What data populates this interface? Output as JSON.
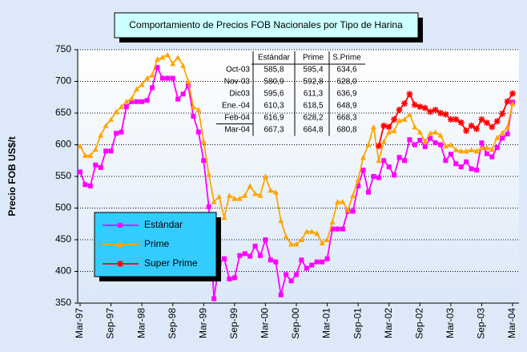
{
  "chart_data": {
    "type": "line",
    "title": "Comportamiento de Precios FOB Nacionales por Tipo de Harina",
    "y_label": "Precio FOB US$/t",
    "categories": [
      "Mar-97",
      null,
      null,
      null,
      null,
      null,
      "Sep-97",
      null,
      null,
      null,
      null,
      null,
      "Mar-98",
      null,
      null,
      null,
      null,
      null,
      "Sep-98",
      null,
      null,
      null,
      null,
      null,
      "Mar-99",
      null,
      null,
      null,
      null,
      null,
      "Sep-99",
      null,
      null,
      null,
      null,
      null,
      "Mar-00",
      null,
      null,
      null,
      null,
      null,
      "Sep-00",
      null,
      null,
      null,
      null,
      null,
      "Mar-01",
      null,
      null,
      null,
      null,
      null,
      "Sep-01",
      null,
      null,
      null,
      null,
      null,
      "Mar-02",
      null,
      null,
      null,
      null,
      null,
      "Sep-02",
      null,
      null,
      null,
      null,
      null,
      "Mar-03",
      null,
      null,
      null,
      null,
      null,
      "Sep-03",
      null,
      null,
      null,
      null,
      null,
      "Mar-04"
    ],
    "series": [
      {
        "name": "Estándar",
        "color": "#ff00ff",
        "marker": "square",
        "values": [
          557,
          537,
          535,
          568,
          564,
          590,
          590,
          618,
          620,
          660,
          668,
          668,
          668,
          670,
          690,
          722,
          705,
          705,
          705,
          672,
          680,
          693,
          645,
          620,
          575,
          502,
          357,
          413,
          420,
          388,
          390,
          425,
          428,
          424,
          440,
          425,
          450,
          418,
          415,
          363,
          395,
          385,
          395,
          418,
          405,
          410,
          415,
          415,
          420,
          467,
          467,
          467,
          495,
          495,
          535,
          560,
          525,
          550,
          548,
          575,
          565,
          552,
          580,
          575,
          608,
          600,
          607,
          597,
          610,
          603,
          600,
          575,
          585,
          570,
          565,
          573,
          562,
          560,
          603,
          585.8,
          580.9,
          595.6,
          610.3,
          616.9,
          667.3
        ]
      },
      {
        "name": "Prime",
        "color": "#ffa500",
        "marker": "triangle",
        "values": [
          598,
          583,
          583,
          593,
          615,
          630,
          640,
          652,
          660,
          668,
          673,
          688,
          695,
          705,
          710,
          735,
          738,
          742,
          728,
          738,
          725,
          700,
          660,
          655,
          605,
          553,
          510,
          518,
          485,
          520,
          515,
          515,
          520,
          535,
          523,
          520,
          550,
          528,
          525,
          480,
          455,
          443,
          443,
          450,
          463,
          463,
          460,
          445,
          450,
          478,
          510,
          510,
          497,
          520,
          545,
          580,
          600,
          628,
          575,
          605,
          620,
          622,
          638,
          640,
          648,
          628,
          620,
          605,
          618,
          620,
          615,
          598,
          600,
          592,
          590,
          590,
          592,
          590,
          595,
          595.4,
          592.8,
          611.3,
          618.5,
          628.2,
          664.8
        ]
      },
      {
        "name": "Super Prime",
        "color": "#ff0000",
        "marker": "asterisk",
        "values": [
          null,
          null,
          null,
          null,
          null,
          null,
          null,
          null,
          null,
          null,
          null,
          null,
          null,
          null,
          null,
          null,
          null,
          null,
          null,
          null,
          null,
          null,
          null,
          null,
          null,
          null,
          null,
          null,
          null,
          null,
          null,
          null,
          null,
          null,
          null,
          null,
          null,
          null,
          null,
          null,
          null,
          null,
          null,
          null,
          null,
          null,
          null,
          null,
          null,
          null,
          null,
          null,
          null,
          null,
          null,
          null,
          null,
          null,
          598,
          630,
          628,
          640,
          655,
          665,
          680,
          663,
          660,
          658,
          652,
          655,
          650,
          648,
          640,
          640,
          635,
          622,
          630,
          625,
          640,
          634.6,
          628.0,
          636.9,
          648.9,
          668.3,
          680.8
        ]
      }
    ],
    "ylim": [
      350,
      750
    ],
    "yticks": [
      350,
      400,
      450,
      500,
      550,
      600,
      650,
      700,
      750
    ],
    "grid": true,
    "legend": "lower left",
    "table": {
      "columns": [
        "Estándar",
        "Prime",
        "S.Prime"
      ],
      "rows": [
        [
          "Oct-03",
          "585,8",
          "595,4",
          "634,6"
        ],
        [
          "Nov-03",
          "580,9",
          "592,8",
          "628,0"
        ],
        [
          "Dic03",
          "595,6",
          "611,3",
          "636,9"
        ],
        [
          "Ene.-04",
          "610,3",
          "618,5",
          "648,9"
        ],
        [
          "Feb-04",
          "616,9",
          "628,2",
          "668,3"
        ],
        [
          "Mar-04",
          "667,3",
          "664,8",
          "680,8"
        ]
      ]
    }
  }
}
